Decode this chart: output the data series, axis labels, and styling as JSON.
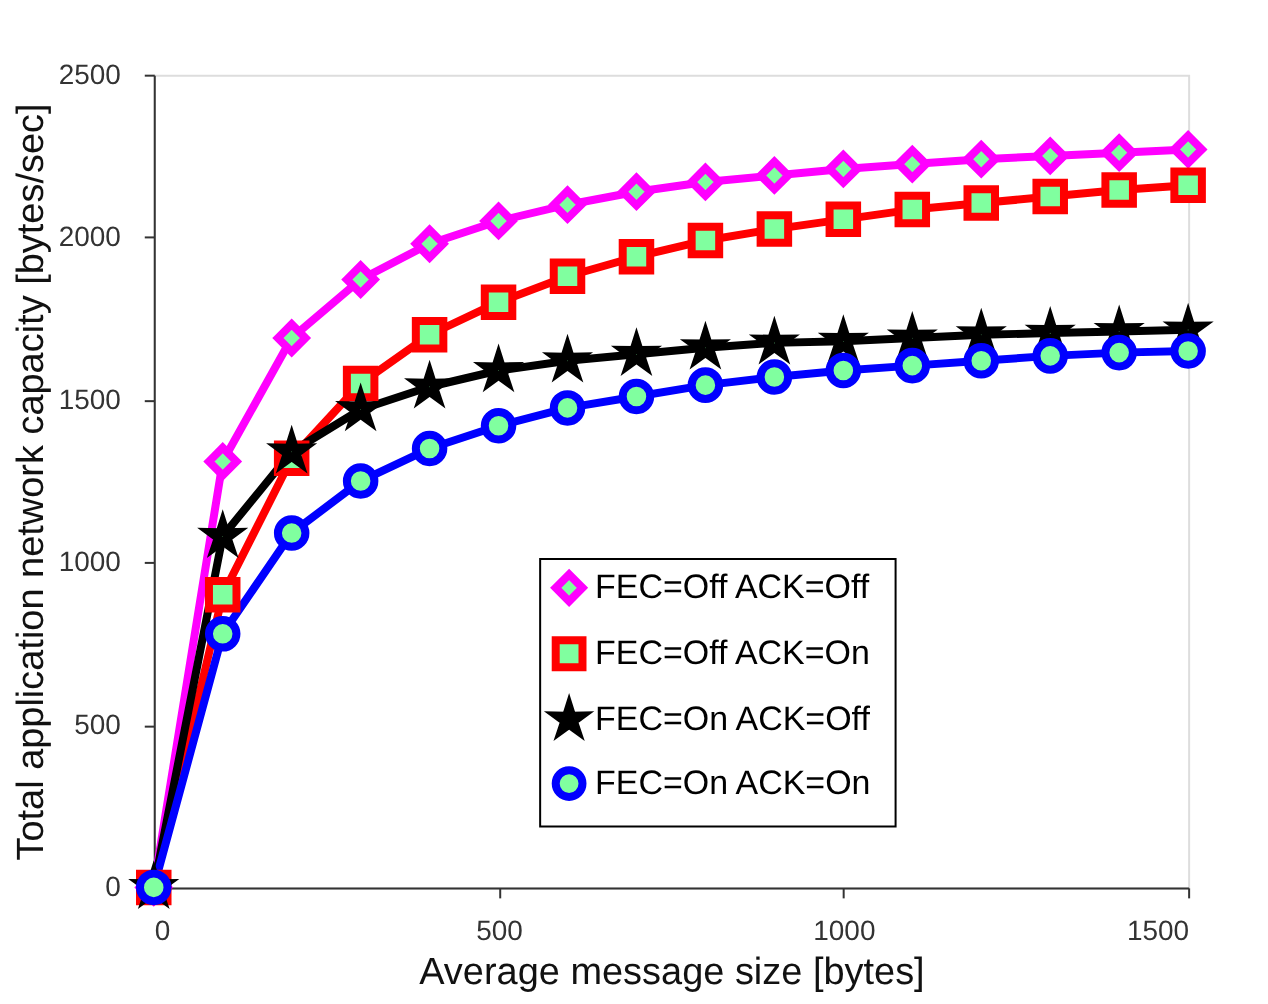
{
  "chart_data": {
    "type": "line",
    "xlabel": "Average message size [bytes]",
    "ylabel": "Total application network capacity [bytes/sec]",
    "x": [
      0,
      100,
      200,
      300,
      400,
      500,
      600,
      700,
      800,
      900,
      1000,
      1100,
      1200,
      1300,
      1400,
      1500
    ],
    "series": [
      {
        "name": "FEC=Off  ACK=Off",
        "color": "#ff00ff",
        "marker": "diamond",
        "values": [
          0,
          1310,
          1690,
          1870,
          1980,
          2050,
          2100,
          2140,
          2170,
          2190,
          2210,
          2225,
          2240,
          2250,
          2260,
          2270
        ]
      },
      {
        "name": "FEC=Off  ACK=On",
        "color": "#ff0000",
        "marker": "square",
        "values": [
          0,
          900,
          1320,
          1550,
          1700,
          1800,
          1880,
          1940,
          1990,
          2025,
          2055,
          2085,
          2105,
          2125,
          2145,
          2160
        ]
      },
      {
        "name": "FEC=On  ACK=Off",
        "color": "#000000",
        "marker": "star",
        "values": [
          0,
          1080,
          1340,
          1470,
          1540,
          1590,
          1620,
          1640,
          1660,
          1675,
          1680,
          1690,
          1700,
          1705,
          1710,
          1715
        ]
      },
      {
        "name": "FEC=On  ACK=On",
        "color": "#0000ff",
        "marker": "circle",
        "values": [
          0,
          780,
          1090,
          1250,
          1350,
          1420,
          1475,
          1510,
          1545,
          1570,
          1590,
          1605,
          1620,
          1635,
          1645,
          1650
        ]
      }
    ],
    "xlim": [
      0,
      1500
    ],
    "xticks": [
      0,
      500,
      1000,
      1500
    ],
    "ylim": [
      0,
      2500
    ],
    "yticks": [
      0,
      500,
      1000,
      1500,
      2000,
      2500
    ],
    "grid": false,
    "legend": "bottom right",
    "line_style": "solid"
  }
}
